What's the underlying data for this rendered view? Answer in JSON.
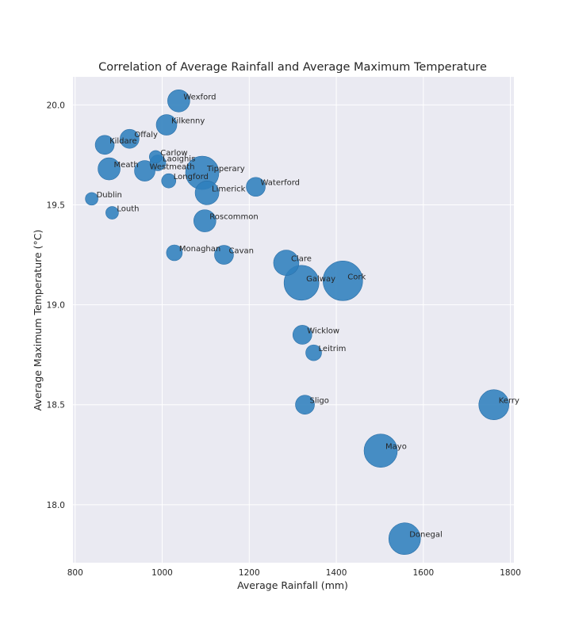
{
  "chart_data": {
    "type": "scatter",
    "title": "Correlation of Average Rainfall and Average Maximum Temperature",
    "xlabel": "Average Rainfall (mm)",
    "ylabel": "Average Maximum Temperature (°C)",
    "xlim": [
      795,
      1808
    ],
    "ylim": [
      17.71,
      20.14
    ],
    "xticks": [
      800,
      1000,
      1200,
      1400,
      1600,
      1800
    ],
    "yticks": [
      18.0,
      18.5,
      19.0,
      19.5,
      20.0
    ],
    "grid": true,
    "background": "#eaeaf2",
    "point_color": "#2f7fbd",
    "size_encoding": "bubble area varies per county",
    "points": [
      {
        "label": "Wexford",
        "x": 1038,
        "y": 20.02,
        "size": 14
      },
      {
        "label": "Kilkenny",
        "x": 1010,
        "y": 19.9,
        "size": 13
      },
      {
        "label": "Offaly",
        "x": 925,
        "y": 19.83,
        "size": 12
      },
      {
        "label": "Kildare",
        "x": 868,
        "y": 19.8,
        "size": 12
      },
      {
        "label": "Carlow",
        "x": 985,
        "y": 19.74,
        "size": 8
      },
      {
        "label": "Laoighis",
        "x": 990,
        "y": 19.71,
        "size": 10
      },
      {
        "label": "Meath",
        "x": 878,
        "y": 19.68,
        "size": 14
      },
      {
        "label": "Westmeath",
        "x": 960,
        "y": 19.67,
        "size": 13
      },
      {
        "label": "Tipperary",
        "x": 1092,
        "y": 19.66,
        "size": 21
      },
      {
        "label": "Longford",
        "x": 1015,
        "y": 19.62,
        "size": 9
      },
      {
        "label": "Waterford",
        "x": 1215,
        "y": 19.59,
        "size": 12
      },
      {
        "label": "Limerick",
        "x": 1103,
        "y": 19.56,
        "size": 15
      },
      {
        "label": "Dublin",
        "x": 838,
        "y": 19.53,
        "size": 8
      },
      {
        "label": "Louth",
        "x": 885,
        "y": 19.46,
        "size": 8
      },
      {
        "label": "Roscommon",
        "x": 1098,
        "y": 19.42,
        "size": 14
      },
      {
        "label": "Monaghan",
        "x": 1028,
        "y": 19.26,
        "size": 10
      },
      {
        "label": "Cavan",
        "x": 1142,
        "y": 19.25,
        "size": 12
      },
      {
        "label": "Clare",
        "x": 1285,
        "y": 19.21,
        "size": 16
      },
      {
        "label": "Galway",
        "x": 1320,
        "y": 19.11,
        "size": 22
      },
      {
        "label": "Cork",
        "x": 1415,
        "y": 19.12,
        "size": 25
      },
      {
        "label": "Wicklow",
        "x": 1322,
        "y": 18.85,
        "size": 12
      },
      {
        "label": "Leitrim",
        "x": 1348,
        "y": 18.76,
        "size": 10
      },
      {
        "label": "Sligo",
        "x": 1328,
        "y": 18.5,
        "size": 12
      },
      {
        "label": "Kerry",
        "x": 1762,
        "y": 18.5,
        "size": 19
      },
      {
        "label": "Mayo",
        "x": 1502,
        "y": 18.27,
        "size": 21
      },
      {
        "label": "Donegal",
        "x": 1557,
        "y": 17.83,
        "size": 20
      }
    ]
  }
}
